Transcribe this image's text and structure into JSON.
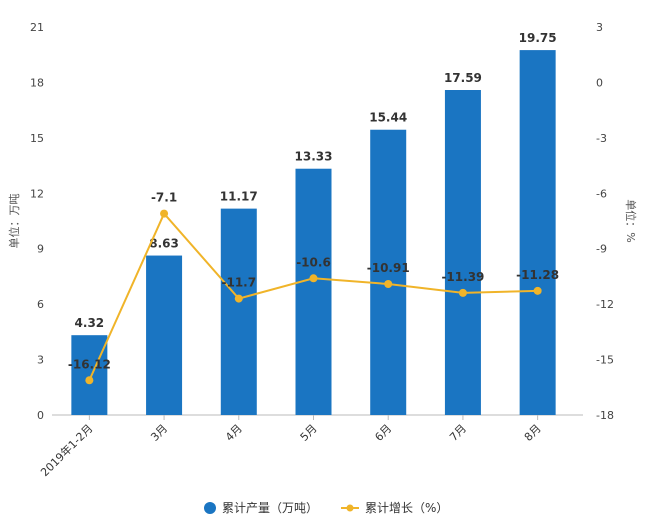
{
  "chart_data": {
    "type": "bar+line",
    "categories": [
      "2019年1-2月",
      "3月",
      "4月",
      "5月",
      "6月",
      "7月",
      "8月"
    ],
    "series": [
      {
        "name": "累计产量（万吨）",
        "type": "bar",
        "axis": "left",
        "color": "#1a75c2",
        "values": [
          4.32,
          8.63,
          11.17,
          13.33,
          15.44,
          17.59,
          19.75
        ]
      },
      {
        "name": "累计增长（%）",
        "type": "line",
        "axis": "right",
        "color": "#f0b429",
        "values": [
          -16.12,
          -7.1,
          -11.7,
          -10.6,
          -10.91,
          -11.39,
          -11.28
        ]
      }
    ],
    "ylabel_left": "单位：万吨",
    "ylabel_right": "单位：%",
    "ylim_left": [
      0,
      21
    ],
    "yticks_left": [
      0,
      3,
      6,
      9,
      12,
      15,
      18,
      21
    ],
    "ylim_right": [
      -18,
      3
    ],
    "yticks_right": [
      -18,
      -15,
      -12,
      -9,
      -6,
      -3,
      0,
      3
    ],
    "grid": false,
    "legend": "bottom-center"
  }
}
